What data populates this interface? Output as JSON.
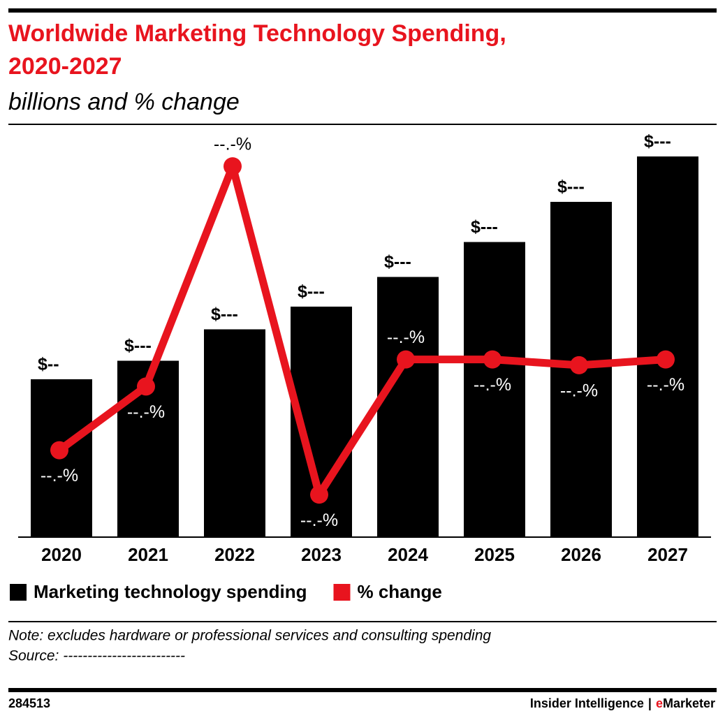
{
  "chart_data": {
    "type": "bar",
    "title": "Worldwide Marketing Technology Spending, 2020-2027",
    "subtitle": "billions and % change",
    "categories": [
      "2020",
      "2021",
      "2022",
      "2023",
      "2024",
      "2025",
      "2026",
      "2027"
    ],
    "series": [
      {
        "name": "Marketing technology spending",
        "type": "bar",
        "color": "#000000",
        "values": [
          90.4,
          101,
          119,
          132,
          149,
          169,
          192,
          218
        ],
        "value_labels": [
          "$--",
          "$---",
          "$---",
          "$---",
          "$---",
          "$---",
          "$---",
          "$---"
        ]
      },
      {
        "name": "% change",
        "type": "line",
        "axis": "y2",
        "color": "#e8141e",
        "values": [
          7.3,
          10.6,
          22.0,
          5.0,
          12.0,
          12.0,
          11.7,
          12.0
        ],
        "value_labels": [
          "--.-%",
          "--.-%",
          "--.-%",
          "--.-%",
          "--.-%",
          "--.-%",
          "--.-%",
          "--.-%"
        ]
      }
    ],
    "ylim": [
      0,
      240
    ],
    "y2lim": [
      2.8,
      24.5
    ],
    "grid": false,
    "note": "Note: excludes hardware or professional services and consulting spending",
    "source": "Source: -------------------------",
    "footer": {
      "id": "284513",
      "brand": "Insider Intelligence",
      "separator": "|",
      "brand_e": "e",
      "brand_rest": "Marketer"
    }
  }
}
